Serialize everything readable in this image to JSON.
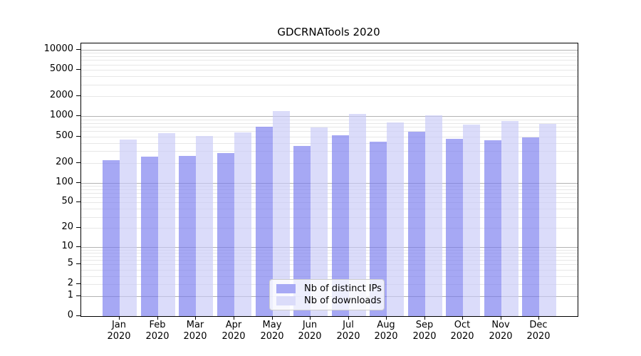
{
  "figure": {
    "title": "GDCRNATools 2020"
  },
  "chart_data": {
    "type": "bar",
    "title": "GDCRNATools 2020",
    "xlabel": "",
    "ylabel": "",
    "x_categories": [
      "Jan",
      "Feb",
      "Mar",
      "Apr",
      "May",
      "Jun",
      "Jul",
      "Aug",
      "Sep",
      "Oct",
      "Nov",
      "Dec"
    ],
    "x_year_sublabel": "2020",
    "y_scale": "log1p",
    "y_axis_tick_values": [
      0,
      1,
      2,
      5,
      10,
      20,
      50,
      100,
      200,
      500,
      1000,
      2000,
      5000,
      10000
    ],
    "y_axis_tick_labels": [
      "0",
      "1",
      "2",
      "5",
      "10",
      "20",
      "50",
      "100",
      "200",
      "500",
      "1000",
      "2000",
      "5000",
      "10000"
    ],
    "y_major_grid_values": [
      1,
      10,
      100,
      1000,
      10000
    ],
    "ylim_top": 12500,
    "grid": true,
    "legend_position": "lower-center",
    "series": [
      {
        "name": "Nb of distinct IPs",
        "values": [
          220,
          247,
          255,
          280,
          705,
          357,
          525,
          418,
          593,
          464,
          440,
          488
        ],
        "fill_rgba": "rgba(118,121,238,0.65)",
        "rendered_hex": "#a7a9f5"
      },
      {
        "name": "Nb of downloads",
        "values": [
          450,
          565,
          504,
          574,
          1190,
          680,
          1080,
          805,
          1035,
          750,
          845,
          780
        ],
        "fill_rgba": "rgba(200,201,247,0.65)",
        "rendered_hex": "#dbdcfa"
      }
    ],
    "colors": {
      "major_grid": "#b3b3b3",
      "minor_grid": "#e7e7e7",
      "axis_line": "#000000",
      "text": "#000000",
      "legend_bg": "rgba(255,255,255,0.8)",
      "legend_border": "#cccccc",
      "background": "#ffffff"
    }
  }
}
